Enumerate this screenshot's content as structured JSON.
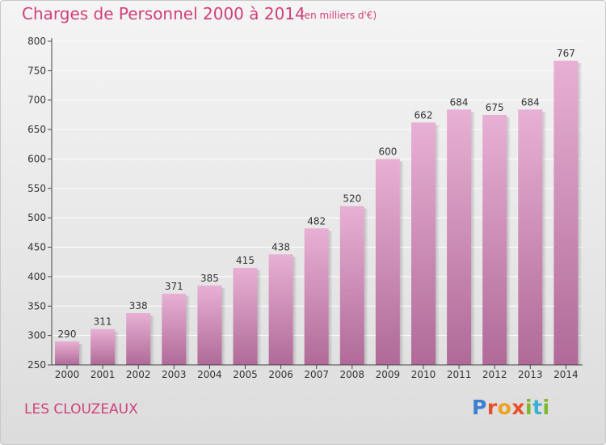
{
  "header": {
    "title": "Charges de Personnel 2000 à 2014",
    "subtitle": "(en milliers d'€)"
  },
  "footer": {
    "town": "LES CLOUZEAUX",
    "logo_text": "Proxiti",
    "logo_colors": [
      "#3b7fd0",
      "#e8502b",
      "#f0a020",
      "#e8502b",
      "#7ab82c",
      "#3bb0d0",
      "#7ab82c"
    ]
  },
  "chart_data": {
    "type": "bar",
    "categories": [
      "2000",
      "2001",
      "2002",
      "2003",
      "2004",
      "2005",
      "2006",
      "2007",
      "2008",
      "2009",
      "2010",
      "2011",
      "2012",
      "2013",
      "2014"
    ],
    "values": [
      290,
      311,
      338,
      371,
      385,
      415,
      438,
      482,
      520,
      600,
      662,
      684,
      675,
      684,
      767
    ],
    "ylim": [
      250,
      800
    ],
    "yticks": [
      250,
      300,
      350,
      400,
      450,
      500,
      550,
      600,
      650,
      700,
      750,
      800
    ],
    "grid": true,
    "bar_color_top": "#e8b0d4",
    "bar_color_bottom": "#b06a98"
  }
}
